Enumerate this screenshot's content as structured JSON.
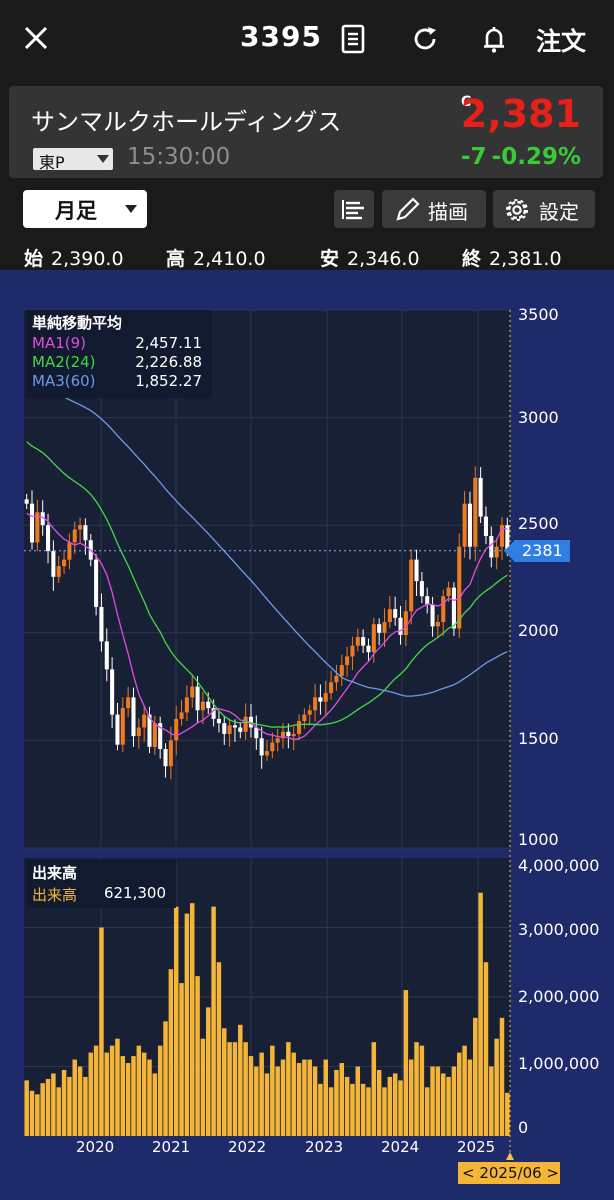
{
  "header": {
    "code": "3395",
    "order_label": "注文",
    "icons": [
      "close-icon",
      "document-icon",
      "refresh-icon",
      "bell-icon"
    ]
  },
  "stock": {
    "name": "サンマルクホールディングス",
    "price_flag": "C",
    "price": "2,381",
    "market": "東P",
    "time": "15:30:00",
    "change": "-7",
    "change_pct": "-0.29%",
    "up_color": "#e8201a",
    "down_color": "#3ac93a"
  },
  "toolbar": {
    "period": "月足",
    "draw_label": "描画",
    "settings_label": "設定"
  },
  "ohlc": {
    "open_label": "始",
    "open": "2,390.0",
    "high_label": "高",
    "high": "2,410.0",
    "low_label": "安",
    "low": "2,346.0",
    "close_label": "終",
    "close": "2,381.0"
  },
  "chart": {
    "ma_title": "単純移動平均",
    "ma": [
      {
        "label": "MA1(9)",
        "value": "2,457.11",
        "color": "#e04de0"
      },
      {
        "label": "MA2(24)",
        "value": "2,226.88",
        "color": "#44d844"
      },
      {
        "label": "MA3(60)",
        "value": "1,852.27",
        "color": "#6e9be8"
      }
    ],
    "price_ticks": [
      "3500",
      "3000",
      "2500",
      "2000",
      "1500",
      "1000"
    ],
    "current_tag": "2381",
    "volume_title": "出来高",
    "volume_label": "出来高",
    "volume_value": "621,300",
    "volume_ticks": [
      "4,000,000",
      "3,000,000",
      "2,000,000",
      "1,000,000",
      "0"
    ],
    "year_labels": [
      "2020",
      "2021",
      "2022",
      "2023",
      "2024",
      "2025"
    ],
    "cursor_date": "< 2025/06 >",
    "up_candle_color": "#f07a20",
    "down_candle_color": "#ffffff",
    "volume_color": "#f5b638"
  },
  "chart_data": {
    "type": "candlestick",
    "interval": "monthly",
    "ylim": [
      1000,
      3500
    ],
    "volume_ylim": [
      0,
      4000000
    ],
    "close_approx": [
      2600,
      2420,
      2560,
      2500,
      2380,
      2260,
      2310,
      2340,
      2420,
      2480,
      2500,
      2430,
      2340,
      2120,
      1960,
      1830,
      1620,
      1480,
      1650,
      1700,
      1520,
      1560,
      1620,
      1470,
      1580,
      1460,
      1380,
      1500,
      1600,
      1630,
      1700,
      1750,
      1640,
      1680,
      1650,
      1600,
      1580,
      1530,
      1570,
      1560,
      1540,
      1610,
      1560,
      1510,
      1430,
      1450,
      1490,
      1510,
      1540,
      1520,
      1530,
      1590,
      1620,
      1640,
      1700,
      1680,
      1720,
      1770,
      1800,
      1850,
      1890,
      1940,
      1980,
      1940,
      1910,
      2040,
      2000,
      2050,
      2110,
      2070,
      1990,
      2100,
      2340,
      2240,
      2170,
      2130,
      2030,
      2050,
      2170,
      2210,
      2020,
      2400,
      2600,
      2400,
      2720,
      2540,
      2450,
      2350,
      2400,
      2500,
      2381
    ],
    "volume_approx": [
      800000,
      650000,
      600000,
      760000,
      820000,
      900000,
      700000,
      950000,
      850000,
      1100000,
      1000000,
      850000,
      1200000,
      1300000,
      3000000,
      1200000,
      1300000,
      1400000,
      1150000,
      1050000,
      1150000,
      1300000,
      1200000,
      1100000,
      900000,
      1300000,
      1650000,
      2400000,
      3300000,
      2200000,
      3200000,
      3350000,
      2300000,
      1400000,
      1850000,
      3300000,
      2500000,
      1550000,
      1350000,
      1350000,
      1600000,
      1350000,
      1150000,
      1000000,
      1200000,
      900000,
      1300000,
      1000000,
      1100000,
      1350000,
      1200000,
      1050000,
      1100000,
      1100000,
      1000000,
      750000,
      1100000,
      700000,
      950000,
      1050000,
      850000,
      750000,
      1000000,
      750000,
      700000,
      1350000,
      950000,
      700000,
      850000,
      900000,
      800000,
      2100000,
      1100000,
      1350000,
      1300000,
      700000,
      1000000,
      1000000,
      900000,
      850000,
      1000000,
      1200000,
      1300000,
      1100000,
      1700000,
      3500000,
      2500000,
      1000000,
      1400000,
      1700000,
      621300
    ],
    "ma_final": {
      "MA1(9)": 2457.11,
      "MA2(24)": 2226.88,
      "MA3(60)": 1852.27
    },
    "x_years": [
      "2020",
      "2021",
      "2022",
      "2023",
      "2024",
      "2025"
    ]
  }
}
